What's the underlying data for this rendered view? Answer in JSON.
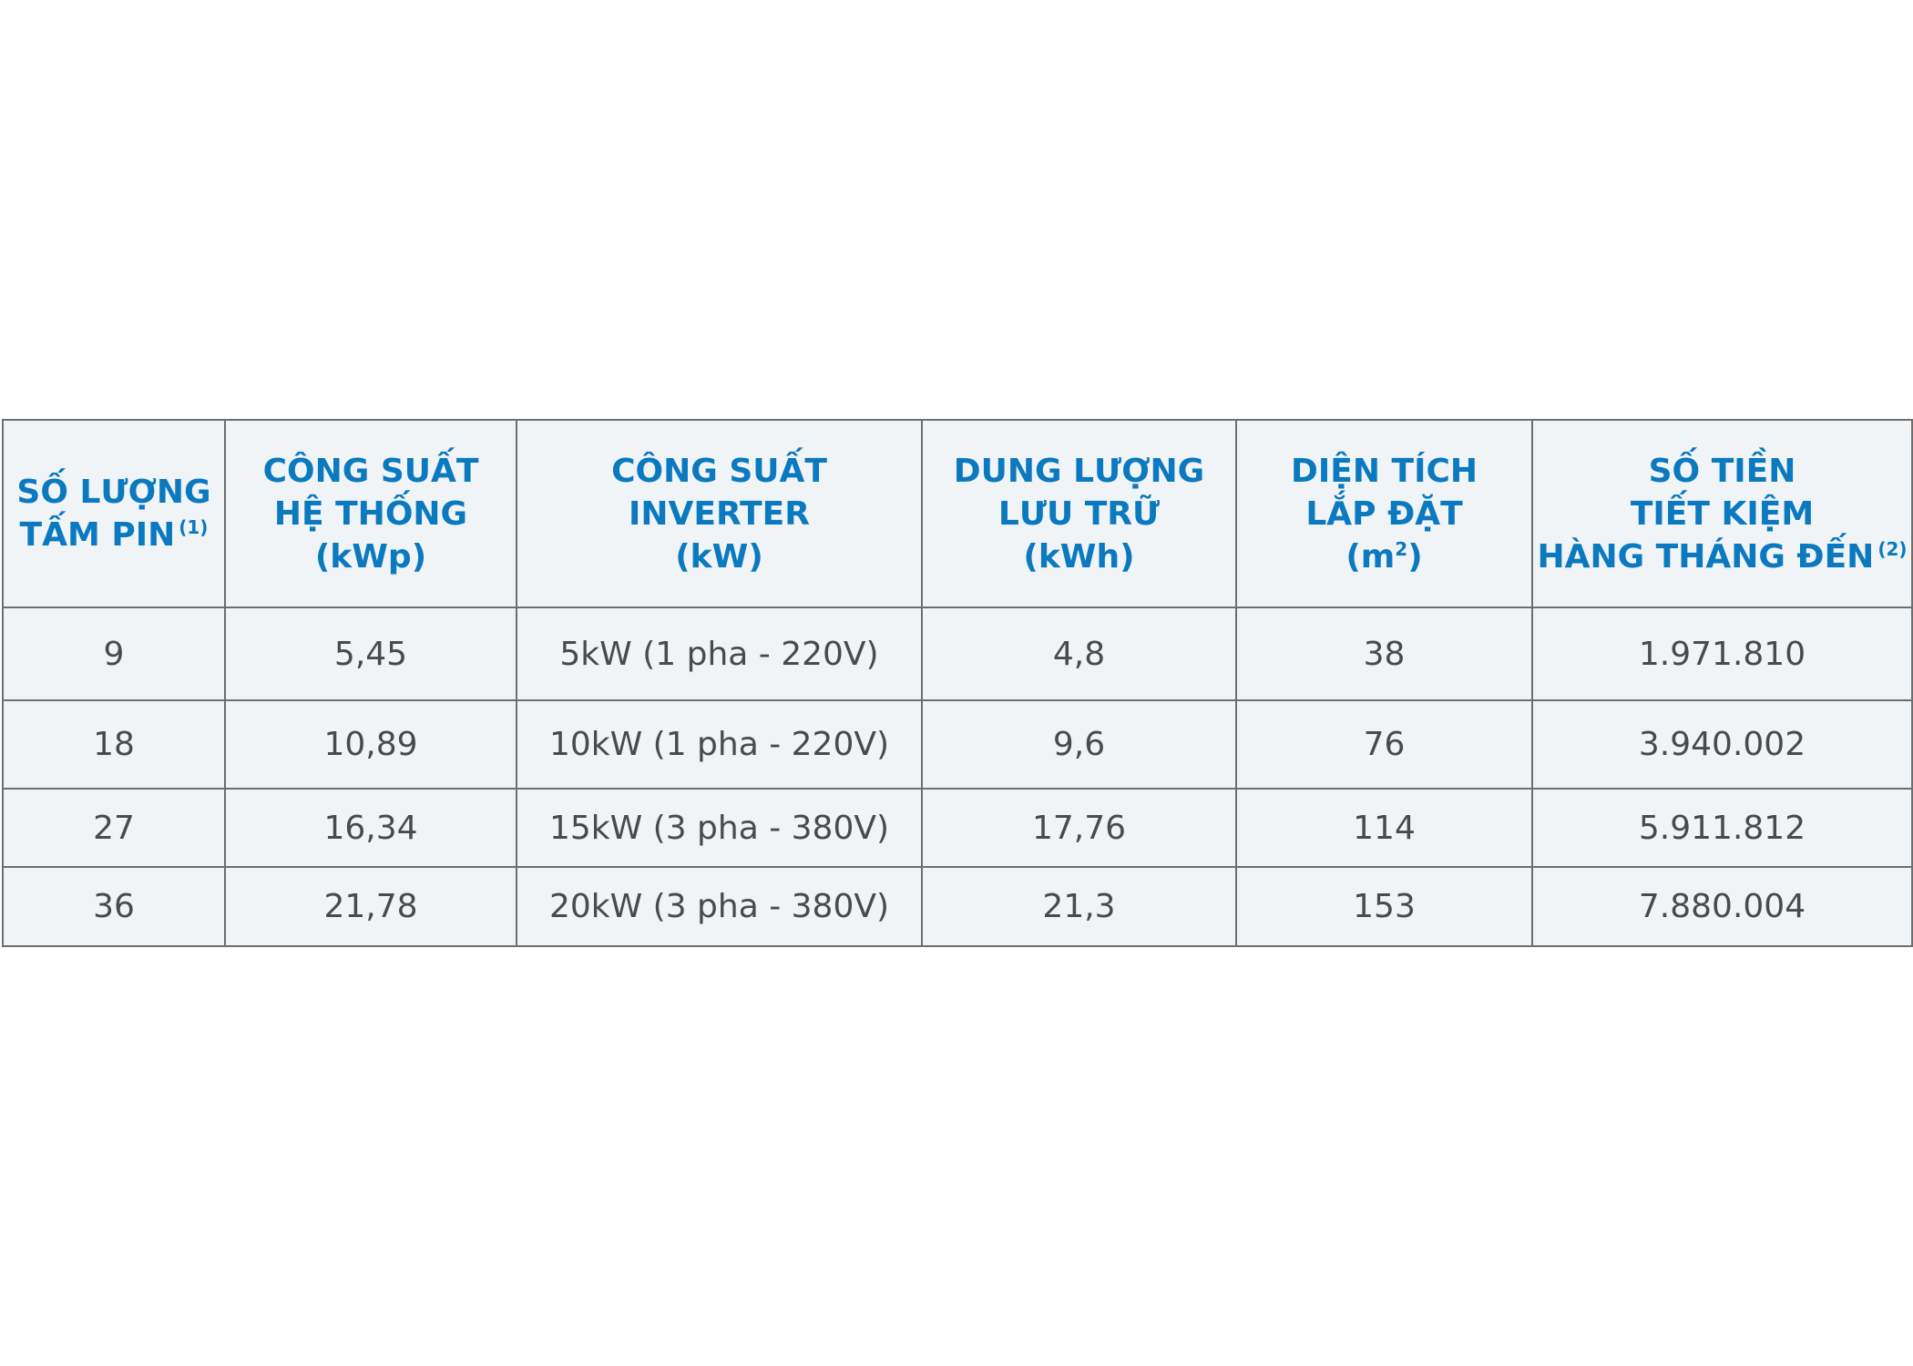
{
  "table": {
    "headers": [
      {
        "lines": [
          "SỐ LƯỢNG",
          "TẤM PIN"
        ],
        "sup": "(1)"
      },
      {
        "lines": [
          "CÔNG SUẤT",
          "HỆ THỐNG",
          "(kWp)"
        ]
      },
      {
        "lines": [
          "CÔNG SUẤT",
          "INVERTER",
          "(kW)"
        ]
      },
      {
        "lines": [
          "DUNG LƯỢNG",
          "LƯU TRỮ",
          "(kWh)"
        ]
      },
      {
        "lines": [
          "DIỆN TÍCH",
          "LẮP ĐẶT",
          "(m",
          ")"
        ],
        "sup": "2"
      },
      {
        "lines": [
          "SỐ TIỀN",
          "TIẾT KIỆM",
          "HÀNG THÁNG ĐẾN"
        ],
        "sup": "(2)"
      }
    ],
    "rows": [
      [
        "9",
        "5,45",
        "5kW (1 pha - 220V)",
        "4,8",
        "38",
        "1.971.810"
      ],
      [
        "18",
        "10,89",
        "10kW (1 pha - 220V)",
        "9,6",
        "76",
        "3.940.002"
      ],
      [
        "27",
        "16,34",
        "15kW (3 pha - 380V)",
        "17,76",
        "114",
        "5.911.812"
      ],
      [
        "36",
        "21,78",
        "20kW (3 pha - 380V)",
        "21,3",
        "153",
        "7.880.004"
      ]
    ]
  },
  "colors": {
    "header_text": "#0a79bf",
    "cell_text": "#4a4a4a",
    "table_background": "#f0f4f7",
    "border": "#6e6e6e"
  }
}
